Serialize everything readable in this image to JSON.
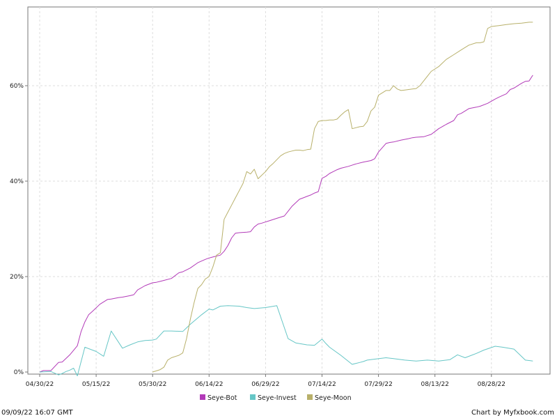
{
  "chart_data": {
    "type": "line",
    "title": "",
    "xlabel": "",
    "ylabel": "",
    "x_tick_labels": [
      "04/30/22",
      "05/15/22",
      "05/30/22",
      "06/14/22",
      "06/29/22",
      "07/14/22",
      "07/29/22",
      "08/13/22",
      "08/28/22"
    ],
    "x_range_days": [
      -2,
      134
    ],
    "y_tick_labels": [
      "0%",
      "20%",
      "40%",
      "60%"
    ],
    "y_tick_values": [
      0,
      20,
      40,
      60
    ],
    "ylim": [
      0,
      76.6
    ],
    "grid": true,
    "legend_position": "bottom",
    "series": [
      {
        "name": "Seye-Bot",
        "color": "#b23ab8",
        "x": [
          0,
          1,
          3,
          5,
          6,
          8,
          10,
          11,
          12,
          13,
          14,
          16,
          18,
          19,
          21,
          22,
          24,
          25,
          26,
          28,
          30,
          31,
          32,
          33,
          35,
          37,
          38,
          39,
          40,
          42,
          44,
          45,
          46,
          48,
          49,
          50,
          51,
          52,
          53,
          55,
          56,
          57,
          58,
          59,
          61,
          63,
          65,
          66,
          67,
          69,
          70,
          71,
          72,
          73,
          74,
          75,
          76,
          77,
          78,
          79,
          80,
          82,
          84,
          86,
          88,
          89,
          90,
          92,
          93,
          94,
          96,
          98,
          99,
          100,
          102,
          104,
          105,
          106,
          108,
          110,
          111,
          112,
          114,
          116,
          117,
          119,
          121,
          122,
          124,
          125,
          126,
          128,
          129,
          130,
          131
        ],
        "values": [
          0,
          0.3,
          0.3,
          2.0,
          2.1,
          3.6,
          5.5,
          8.5,
          10.5,
          12.0,
          12.7,
          14.2,
          15.2,
          15.3,
          15.6,
          15.7,
          16.0,
          16.2,
          17.2,
          18.1,
          18.7,
          18.8,
          19.0,
          19.2,
          19.6,
          20.8,
          21.0,
          21.4,
          21.8,
          22.9,
          23.6,
          23.9,
          24.1,
          24.5,
          25.3,
          26.5,
          28.1,
          29.1,
          29.2,
          29.3,
          29.4,
          30.4,
          31.0,
          31.2,
          31.7,
          32.2,
          32.7,
          33.7,
          34.7,
          36.2,
          36.5,
          36.8,
          37.1,
          37.5,
          37.8,
          40.6,
          41.0,
          41.6,
          42.0,
          42.4,
          42.7,
          43.1,
          43.6,
          44.0,
          44.3,
          44.7,
          46.1,
          47.9,
          48.1,
          48.2,
          48.6,
          48.9,
          49.1,
          49.2,
          49.3,
          49.8,
          50.4,
          51.0,
          51.9,
          52.7,
          53.9,
          54.2,
          55.2,
          55.5,
          55.7,
          56.3,
          57.2,
          57.6,
          58.3,
          59.2,
          59.5,
          60.5,
          60.9,
          61.0,
          62.2
        ]
      },
      {
        "name": "Seye-Invest",
        "color": "#66c6c6",
        "x": [
          0,
          3,
          5,
          6,
          7,
          8,
          9,
          10,
          12,
          15,
          17,
          19,
          22,
          24,
          26,
          28,
          30,
          31,
          33,
          35,
          38,
          40,
          43,
          45,
          46,
          48,
          50,
          53,
          55,
          57,
          60,
          63,
          66,
          68,
          71,
          73,
          75,
          76,
          77,
          80,
          83,
          85,
          86,
          87,
          89,
          92,
          94,
          97,
          100,
          103,
          106,
          109,
          111,
          113,
          116,
          118,
          121,
          123,
          126,
          129,
          131
        ],
        "values": [
          0,
          0.1,
          -0.6,
          -0.3,
          0.1,
          0.4,
          0.8,
          -0.8,
          5.2,
          4.3,
          3.3,
          8.6,
          5.0,
          5.7,
          6.3,
          6.6,
          6.7,
          6.9,
          8.6,
          8.6,
          8.5,
          10.0,
          12.0,
          13.2,
          13.0,
          13.8,
          13.9,
          13.8,
          13.5,
          13.3,
          13.5,
          13.9,
          7.0,
          6.1,
          5.7,
          5.6,
          6.9,
          6.0,
          5.2,
          3.5,
          1.6,
          2.0,
          2.2,
          2.5,
          2.7,
          3.0,
          2.8,
          2.5,
          2.3,
          2.5,
          2.3,
          2.6,
          3.6,
          3.0,
          3.9,
          4.6,
          5.4,
          5.2,
          4.8,
          2.5,
          2.3
        ]
      },
      {
        "name": "Seye-Moon",
        "color": "#b8b06a",
        "x": [
          30,
          32,
          33,
          34,
          35,
          37,
          38,
          39,
          40,
          41,
          42,
          43,
          44,
          45,
          46,
          47,
          48,
          49,
          50,
          51,
          52,
          53,
          54,
          55,
          56,
          57,
          58,
          60,
          61,
          62,
          63,
          64,
          65,
          66,
          67,
          68,
          69,
          70,
          71,
          72,
          73,
          74,
          75,
          76,
          77,
          78,
          79,
          80,
          81,
          82,
          83,
          84,
          85,
          86,
          87,
          88,
          89,
          90,
          91,
          92,
          93,
          94,
          95,
          96,
          97,
          98,
          99,
          100,
          101,
          102,
          103,
          104,
          105,
          106,
          108,
          110,
          112,
          114,
          116,
          117,
          118,
          119,
          120,
          121,
          122,
          123,
          124,
          125,
          126,
          128,
          130,
          131
        ],
        "values": [
          0,
          0.5,
          1.0,
          2.5,
          3.0,
          3.5,
          4.0,
          7.0,
          11.0,
          14.5,
          17.5,
          18.3,
          19.5,
          20.0,
          22.0,
          24.5,
          25.0,
          32.0,
          33.5,
          35.0,
          36.5,
          38.0,
          39.5,
          42.0,
          41.5,
          42.5,
          40.5,
          42.0,
          43.0,
          43.7,
          44.5,
          45.3,
          45.8,
          46.1,
          46.3,
          46.5,
          46.5,
          46.4,
          46.6,
          46.7,
          51.0,
          52.5,
          52.7,
          52.7,
          52.8,
          52.8,
          53.0,
          53.8,
          54.5,
          55.0,
          51.0,
          51.2,
          51.4,
          51.5,
          52.5,
          54.7,
          55.5,
          58.0,
          58.5,
          59.0,
          59.0,
          60.0,
          59.3,
          59.0,
          59.1,
          59.2,
          59.3,
          59.4,
          60.0,
          61.0,
          62.0,
          63.0,
          63.5,
          64.0,
          65.5,
          66.5,
          67.5,
          68.5,
          69.0,
          69.0,
          69.2,
          72.0,
          72.4,
          72.5,
          72.6,
          72.7,
          72.8,
          72.9,
          73.0,
          73.1,
          73.3,
          73.3
        ]
      }
    ]
  },
  "footer": {
    "timestamp": "09/09/22 16:07 GMT",
    "credit": "Chart by Myfxbook.com"
  }
}
